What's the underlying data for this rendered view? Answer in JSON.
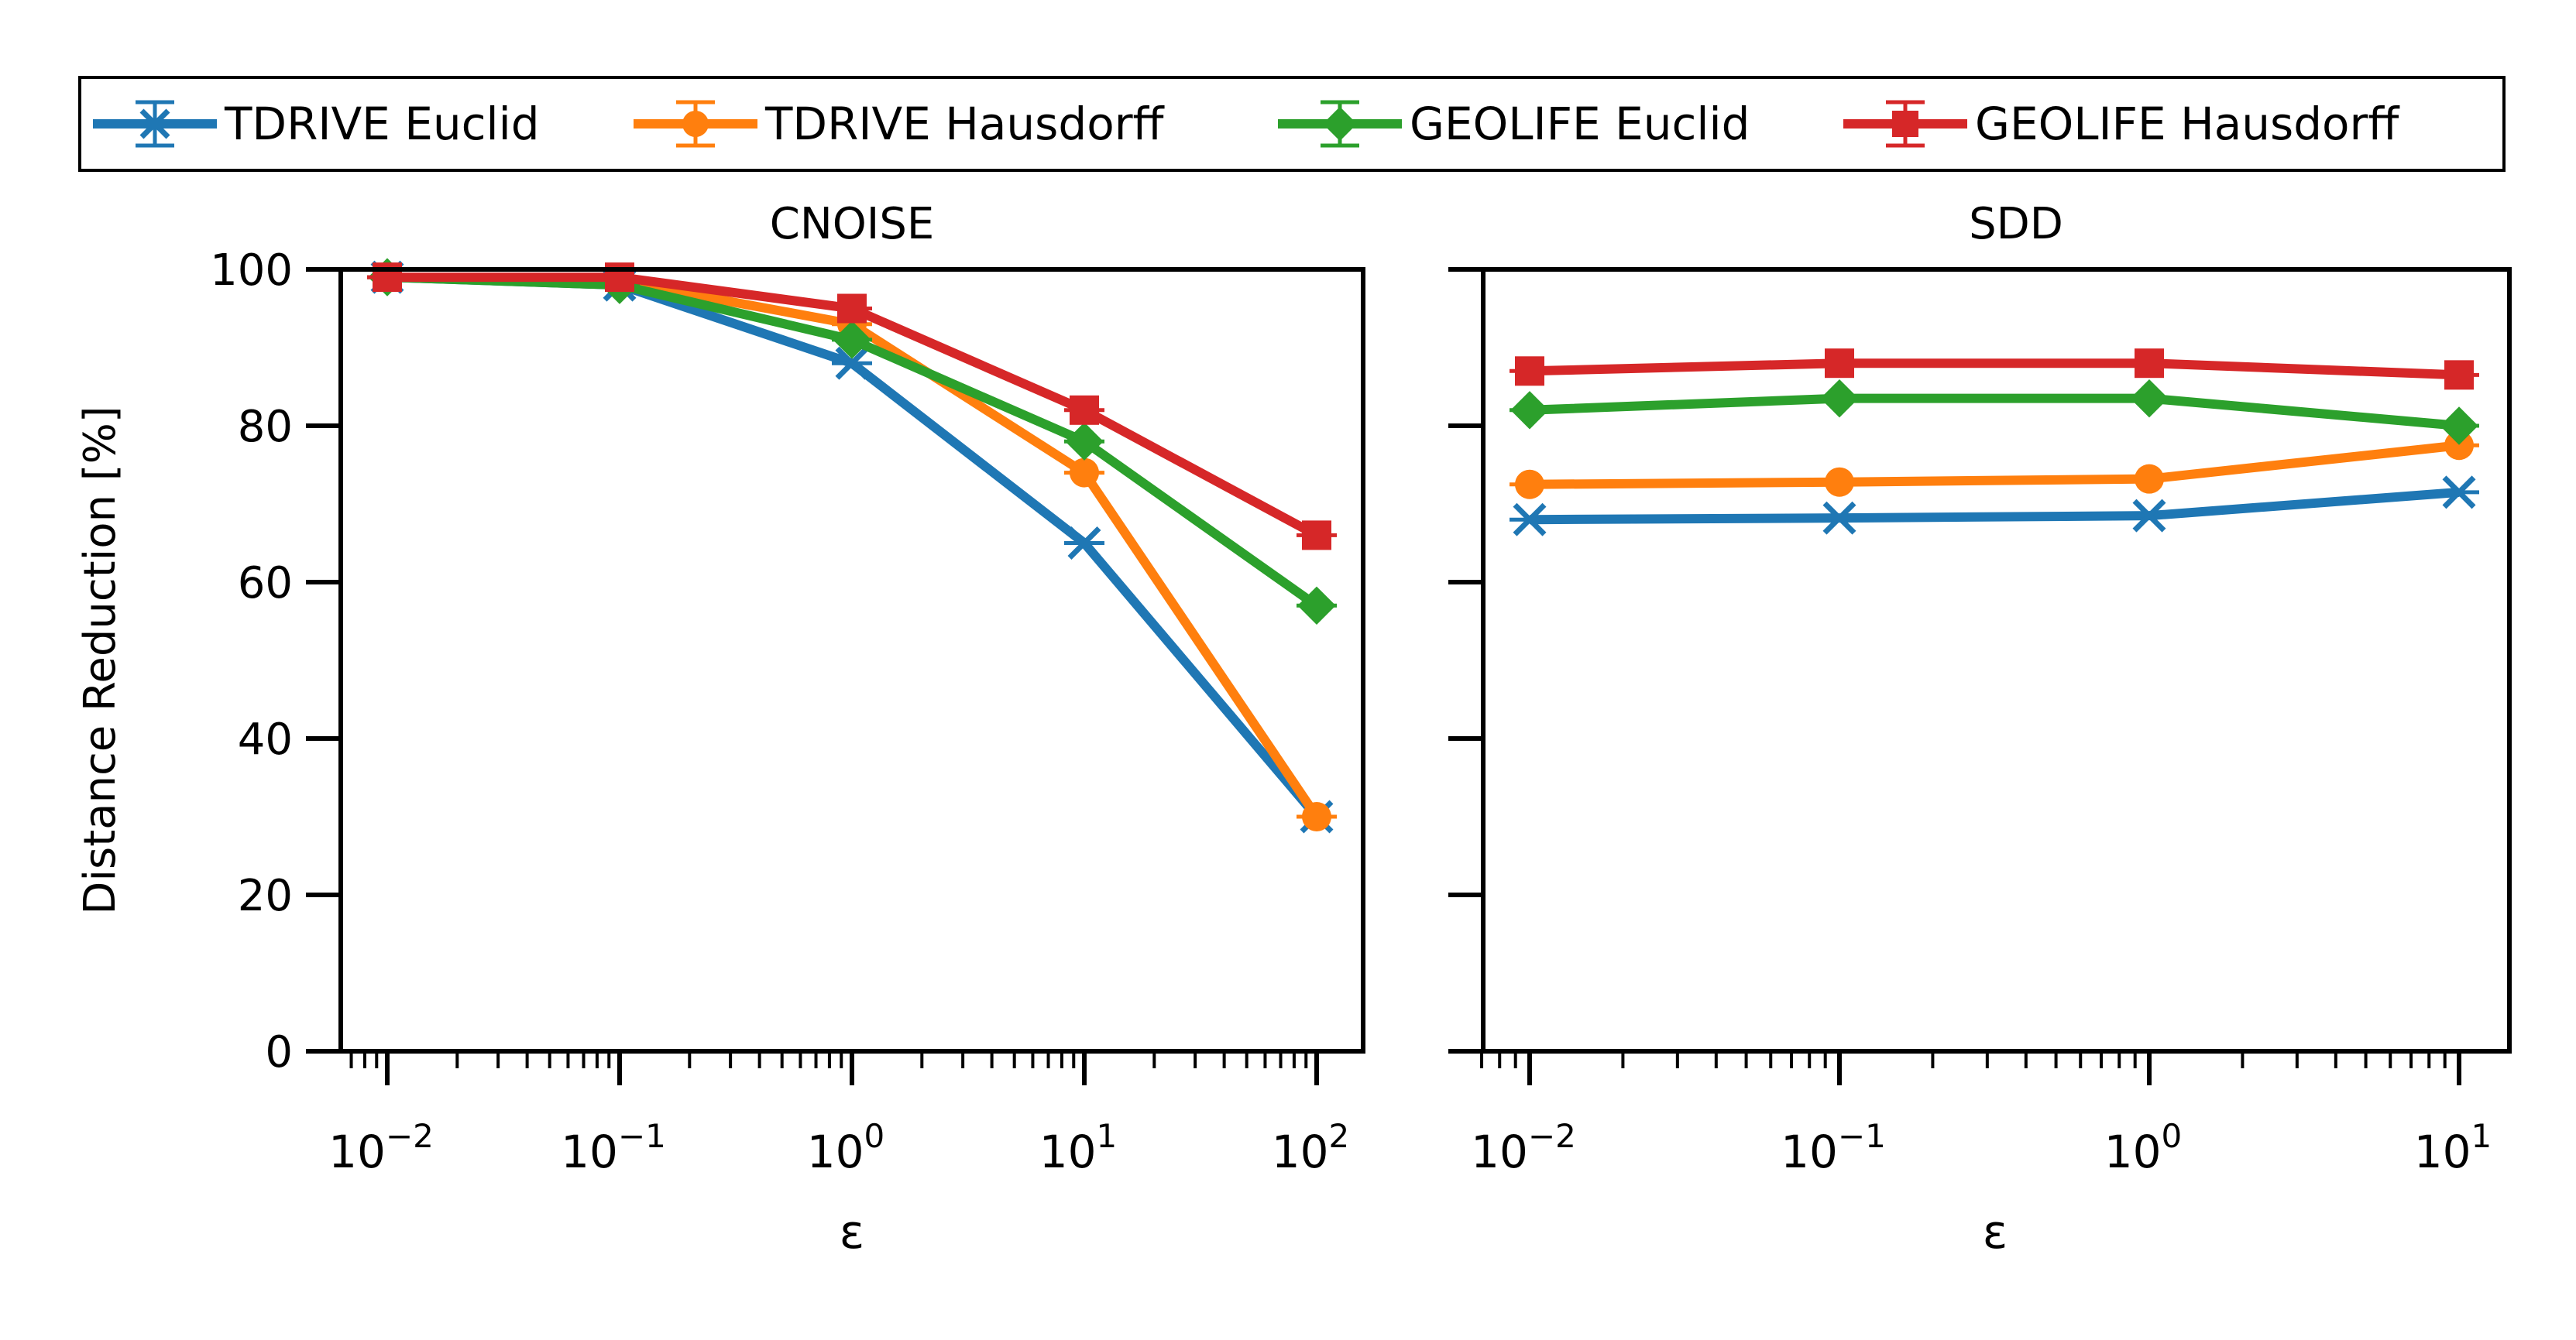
{
  "legend": {
    "items": [
      {
        "label": "TDRIVE Euclid",
        "color": "#1f77b4",
        "marker": "x"
      },
      {
        "label": "TDRIVE Hausdorff",
        "color": "#ff7f0e",
        "marker": "circle"
      },
      {
        "label": "GEOLIFE Euclid",
        "color": "#2ca02c",
        "marker": "diamond"
      },
      {
        "label": "GEOLIFE Hausdorff",
        "color": "#d62728",
        "marker": "square"
      }
    ]
  },
  "chart_data": [
    {
      "type": "line",
      "title": "CNOISE",
      "xlabel": "ε",
      "ylabel": "Distance Reduction [%]",
      "xscale": "log",
      "x": [
        0.01,
        0.1,
        1,
        10,
        100
      ],
      "xtick_labels": [
        {
          "base": "10",
          "exp": "−2"
        },
        {
          "base": "10",
          "exp": "−1"
        },
        {
          "base": "10",
          "exp": "0"
        },
        {
          "base": "10",
          "exp": "1"
        },
        {
          "base": "10",
          "exp": "2"
        }
      ],
      "ylim": [
        0,
        100
      ],
      "yticks": [
        "0",
        "20",
        "40",
        "60",
        "80",
        "100"
      ],
      "series": [
        {
          "name": "TDRIVE Euclid",
          "values": [
            99,
            98,
            88,
            65,
            30
          ]
        },
        {
          "name": "TDRIVE Hausdorff",
          "values": [
            99,
            98.5,
            93,
            74,
            30
          ]
        },
        {
          "name": "GEOLIFE Euclid",
          "values": [
            99,
            98,
            91,
            78,
            57
          ]
        },
        {
          "name": "GEOLIFE Hausdorff",
          "values": [
            99,
            99,
            95,
            82,
            66
          ]
        }
      ]
    },
    {
      "type": "line",
      "title": "SDD",
      "xlabel": "ε",
      "ylabel": "",
      "xscale": "log",
      "x": [
        0.01,
        0.1,
        1,
        10
      ],
      "xtick_labels": [
        {
          "base": "10",
          "exp": "−2"
        },
        {
          "base": "10",
          "exp": "−1"
        },
        {
          "base": "10",
          "exp": "0"
        },
        {
          "base": "10",
          "exp": "1"
        }
      ],
      "ylim": [
        0,
        100
      ],
      "series": [
        {
          "name": "TDRIVE Euclid",
          "values": [
            68,
            68.2,
            68.5,
            71.5
          ]
        },
        {
          "name": "TDRIVE Hausdorff",
          "values": [
            72.5,
            72.8,
            73.2,
            77.5
          ]
        },
        {
          "name": "GEOLIFE Euclid",
          "values": [
            82,
            83.5,
            83.5,
            80
          ]
        },
        {
          "name": "GEOLIFE Hausdorff",
          "values": [
            87,
            88,
            88,
            86.5
          ]
        }
      ]
    }
  ]
}
